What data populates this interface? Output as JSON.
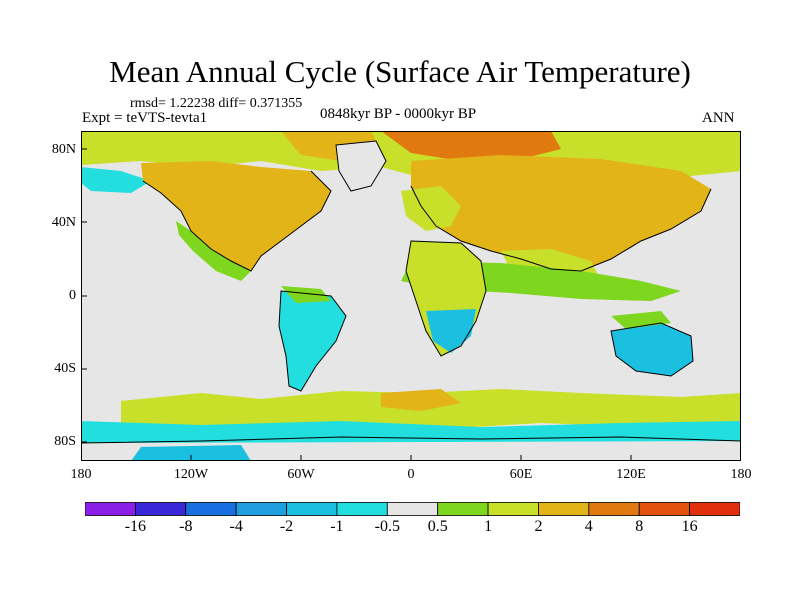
{
  "title": "Mean Annual Cycle (Surface Air Temperature)",
  "stats": "rmsd= 1.22238 diff= 0.371355",
  "experiment": "Expt = teVTS-tevta1",
  "period": "0848kyr BP - 0000kyr BP",
  "season": "ANN",
  "lat_labels": [
    "80N",
    "40N",
    "0",
    "40S",
    "80S"
  ],
  "lon_labels": [
    "180",
    "120W",
    "60W",
    "0",
    "60E",
    "120E",
    "180"
  ],
  "colorbar": {
    "labels": [
      "-16",
      "-8",
      "-4",
      "-2",
      "-1",
      "-0.5",
      "0.5",
      "1",
      "2",
      "4",
      "8",
      "16"
    ],
    "colors": [
      "#8b1fe8",
      "#3a28d8",
      "#1a6fe0",
      "#1f9fe0",
      "#1bc0e0",
      "#22dede",
      "#e6e6e6",
      "#7fd61e",
      "#c8e02a",
      "#e2b418",
      "#e07a10",
      "#e2520e",
      "#e0300e"
    ]
  },
  "map_colors": {
    "ocean_neutral": "#e6e6e6",
    "warm_1": "#7fd61e",
    "warm_2": "#c8e02a",
    "warm_4": "#e2b418",
    "warm_8": "#e07a10",
    "cool_1": "#22dede",
    "cool_05": "#1bc0e0"
  }
}
